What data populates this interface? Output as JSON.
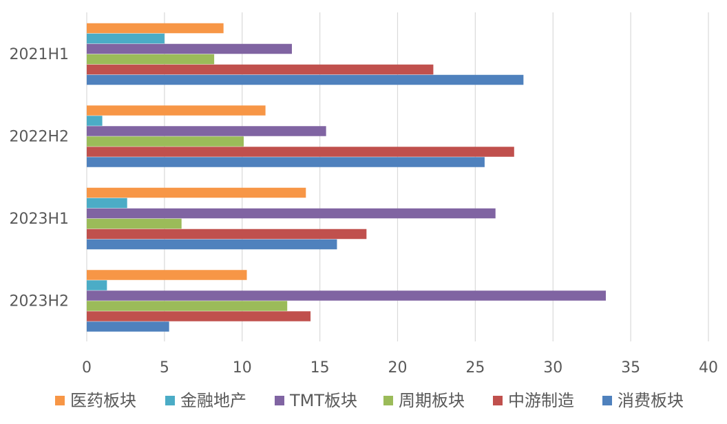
{
  "chart_data": {
    "type": "bar",
    "orientation": "horizontal",
    "title": "",
    "xlabel": "",
    "ylabel": "",
    "categories": [
      "2021H1",
      "2022H2",
      "2023H1",
      "2023H2"
    ],
    "xlim": [
      0,
      40
    ],
    "xticks": [
      0,
      5,
      10,
      15,
      20,
      25,
      30,
      35,
      40
    ],
    "grid": true,
    "legend_position": "bottom",
    "series": [
      {
        "name": "医药板块",
        "color": "#F79646",
        "values": [
          8.8,
          11.5,
          14.1,
          10.3
        ]
      },
      {
        "name": "金融地产",
        "color": "#4BACC6",
        "values": [
          5.0,
          1.0,
          2.6,
          1.3
        ]
      },
      {
        "name": "TMT板块",
        "color": "#8064A2",
        "values": [
          13.2,
          15.4,
          26.3,
          33.4
        ]
      },
      {
        "name": "周期板块",
        "color": "#9BBB59",
        "values": [
          8.2,
          10.1,
          6.1,
          12.9
        ]
      },
      {
        "name": "中游制造",
        "color": "#C0504D",
        "values": [
          22.3,
          27.5,
          18.0,
          14.4
        ]
      },
      {
        "name": "消费板块",
        "color": "#4F81BD",
        "values": [
          28.1,
          25.6,
          16.1,
          5.3
        ]
      }
    ]
  }
}
